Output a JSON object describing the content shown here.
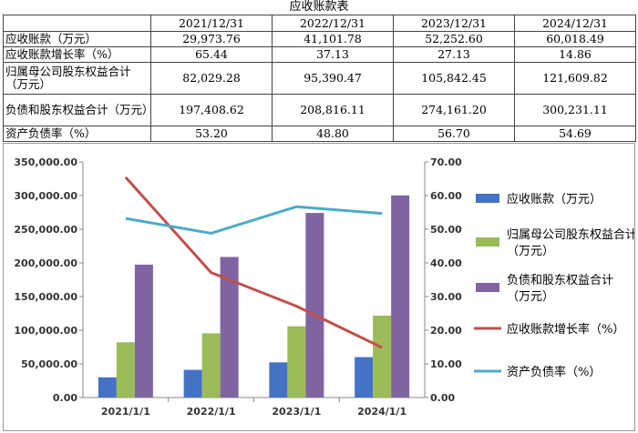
{
  "table": {
    "title": "应收账款表",
    "headers": [
      "",
      "2021/12/31",
      "2022/12/31",
      "2023/12/31",
      "2024/12/31"
    ],
    "rows": [
      {
        "label": "应收账款（万元）",
        "values": [
          "29,973.76",
          "41,101.78",
          "52,252.60",
          "60,018.49"
        ]
      },
      {
        "label": "应收账款增长率（%）",
        "values": [
          "65.44",
          "37.13",
          "27.13",
          "14.86"
        ]
      },
      {
        "label": "归属母公司股东权益合计（万元）",
        "values": [
          "82,029.28",
          "95,390.47",
          "105,842.45",
          "121,609.82"
        ]
      },
      {
        "label": "负债和股东权益合计（万元）",
        "values": [
          "197,408.62",
          "208,816.11",
          "274,161.20",
          "300,231.11"
        ]
      },
      {
        "label": "资产负债率（%）",
        "values": [
          "53.20",
          "48.80",
          "56.70",
          "54.69"
        ]
      }
    ]
  },
  "chart_data": {
    "type": "bar",
    "categories": [
      "2021/1/1",
      "2022/1/1",
      "2023/1/1",
      "2024/1/1"
    ],
    "left_axis": {
      "min": 0,
      "max": 350000,
      "step": 50000,
      "tick_labels": [
        "0.00",
        "50,000.00",
        "100,000.00",
        "150,000.00",
        "200,000.00",
        "250,000.00",
        "300,000.00",
        "350,000.00"
      ]
    },
    "right_axis": {
      "min": 0,
      "max": 70,
      "step": 10,
      "tick_labels": [
        "0.00",
        "10.00",
        "20.00",
        "30.00",
        "40.00",
        "50.00",
        "60.00",
        "70.00"
      ]
    },
    "series": [
      {
        "name": "应收账款（万元）",
        "kind": "bar",
        "axis": "left",
        "color": "#4472C4",
        "values": [
          29973.76,
          41101.78,
          52252.6,
          60018.49
        ]
      },
      {
        "name": "归属母公司股东权益合计（万元）",
        "kind": "bar",
        "axis": "left",
        "color": "#9BBB59",
        "values": [
          82029.28,
          95390.47,
          105842.45,
          121609.82
        ]
      },
      {
        "name": "负债和股东权益合计（万元）",
        "kind": "bar",
        "axis": "left",
        "color": "#8064A2",
        "values": [
          197408.62,
          208816.11,
          274161.2,
          300231.11
        ]
      },
      {
        "name": "应收账款增长率（%）",
        "kind": "line",
        "axis": "right",
        "color": "#C0504D",
        "values": [
          65.44,
          37.13,
          27.13,
          14.86
        ]
      },
      {
        "name": "资产负债率（%）",
        "kind": "line",
        "axis": "right",
        "color": "#4BACC6",
        "values": [
          53.2,
          48.8,
          56.7,
          54.69
        ]
      }
    ],
    "legend_position": "right"
  }
}
